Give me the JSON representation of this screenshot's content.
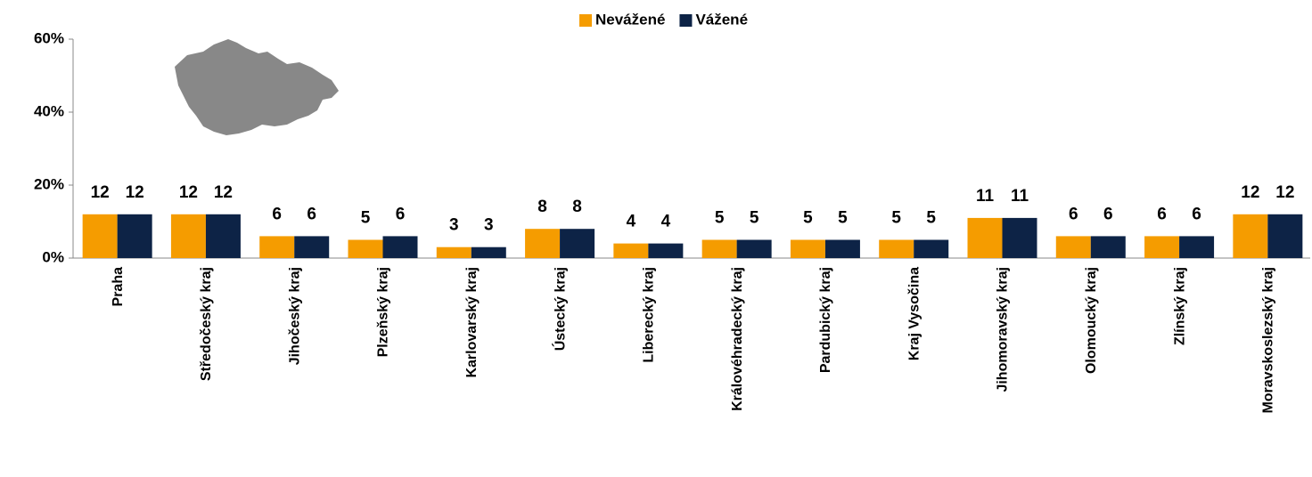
{
  "chart_data": {
    "type": "bar",
    "categories": [
      "Praha",
      "Středočeský kraj",
      "Jihočeský kraj",
      "Plzeňský kraj",
      "Karlovarský kraj",
      "Ústecký kraj",
      "Liberecký kraj",
      "Královéhradecký kraj",
      "Pardubický kraj",
      "Kraj Vysočina",
      "Jihomoravský kraj",
      "Olomoucký kraj",
      "Zlínský kraj",
      "Moravskoslezský kraj"
    ],
    "series": [
      {
        "name": "Nevážené",
        "color": "#f59c00",
        "values": [
          12,
          12,
          6,
          5,
          3,
          8,
          4,
          5,
          5,
          5,
          11,
          6,
          6,
          12
        ]
      },
      {
        "name": "Vážené",
        "color": "#0d2346",
        "values": [
          12,
          12,
          6,
          6,
          3,
          8,
          4,
          5,
          5,
          5,
          11,
          6,
          6,
          12
        ]
      }
    ],
    "ylim": [
      0,
      60
    ],
    "yticks": [
      {
        "value": 0,
        "label": "0%"
      },
      {
        "value": 20,
        "label": "20%"
      },
      {
        "value": 40,
        "label": "40%"
      },
      {
        "value": 60,
        "label": "60%"
      }
    ],
    "legend": "top"
  }
}
